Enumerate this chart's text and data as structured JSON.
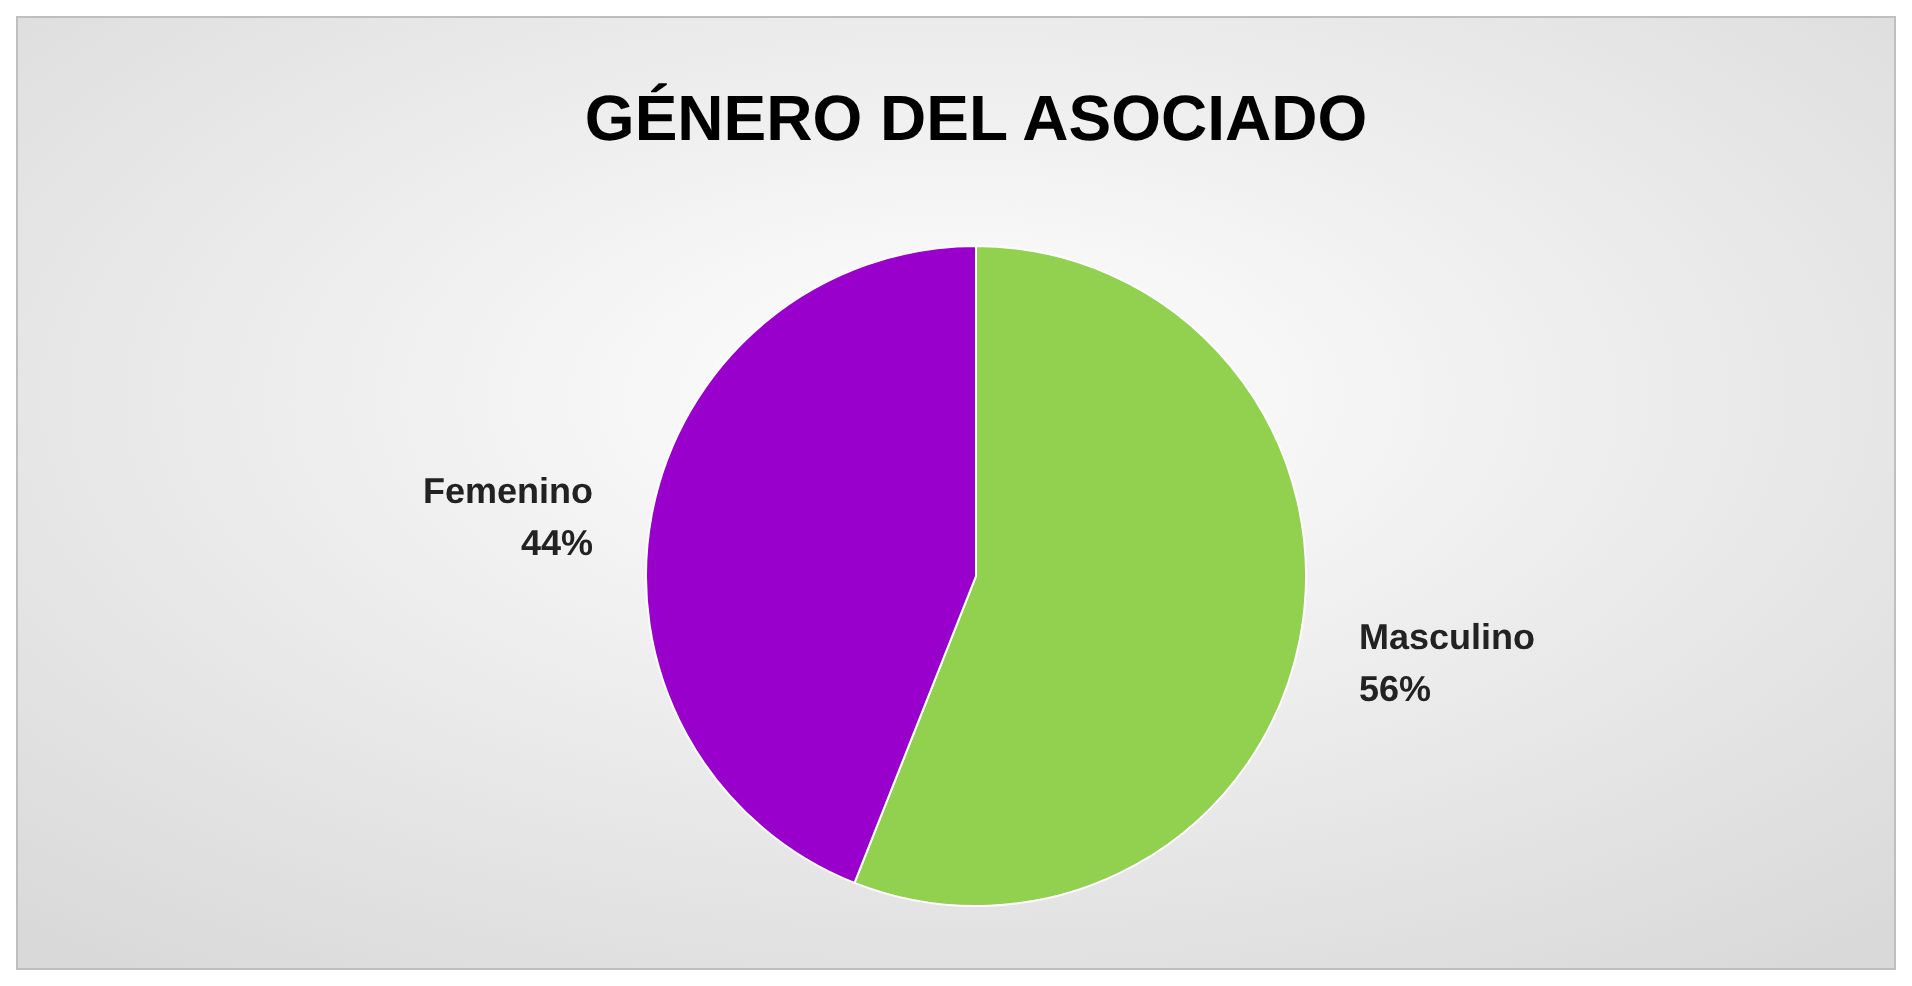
{
  "chart_data": {
    "type": "pie",
    "title": "GÉNERO DEL ASOCIADO",
    "categories": [
      "Masculino",
      "Femenino"
    ],
    "values": [
      56,
      44
    ],
    "colors": [
      "#92d050",
      "#9900cc"
    ],
    "value_labels": [
      "56%",
      "44%"
    ]
  }
}
